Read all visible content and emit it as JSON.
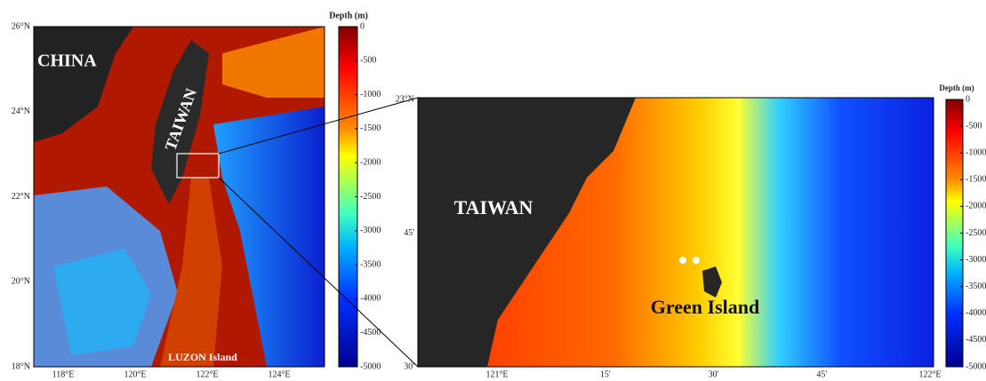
{
  "left_map": {
    "lat_labels": [
      "26°N",
      "24°N",
      "22°N",
      "20°N",
      "18°N"
    ],
    "lon_labels": [
      "118°E",
      "120°E",
      "122°E",
      "124°E"
    ],
    "labels": {
      "china": "CHINA",
      "taiwan": "TAIWAN",
      "luzon": "LUZON Island"
    }
  },
  "left_colorbar": {
    "title": "Depth (m)",
    "lim": [
      0,
      -5000
    ],
    "ticks": [
      0,
      -500,
      -1000,
      -1500,
      -2000,
      -2500,
      -3000,
      -3500,
      -4000,
      -4500,
      -5000
    ]
  },
  "right_map": {
    "lat_labels": [
      "23°N",
      "45'",
      "30'"
    ],
    "lon_labels": [
      "121°E",
      "15'",
      "30'",
      "45'",
      "122°E"
    ],
    "labels": {
      "taiwan": "TAIWAN",
      "green_island": "Green Island"
    }
  },
  "right_colorbar": {
    "title": "Depth (m)",
    "lim": [
      0,
      -5000
    ],
    "ticks": [
      0,
      -500,
      -1000,
      -1500,
      -2000,
      -2500,
      -3000,
      -3500,
      -4000,
      -4500,
      -5000
    ]
  }
}
